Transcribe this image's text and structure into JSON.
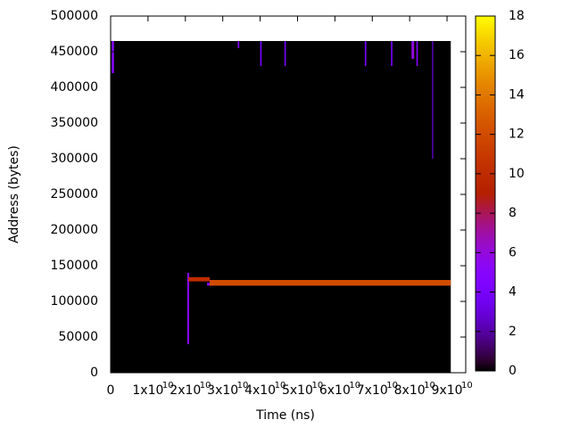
{
  "chart_data": {
    "type": "heatmap",
    "xlabel": "Time (ns)",
    "ylabel": "Address (bytes)",
    "xlim": [
      0,
      95000000000
    ],
    "ylim": [
      0,
      500000
    ],
    "xticks": [
      0,
      {
        "value": 10000000000,
        "label": "1x10",
        "exponent": "10"
      },
      {
        "value": 20000000000,
        "label": "2x10",
        "exponent": "10"
      },
      {
        "value": 30000000000,
        "label": "3x10",
        "exponent": "10"
      },
      {
        "value": 40000000000,
        "label": "4x10",
        "exponent": "10"
      },
      {
        "value": 50000000000,
        "label": "5x10",
        "exponent": "10"
      },
      {
        "value": 60000000000,
        "label": "6x10",
        "exponent": "10"
      },
      {
        "value": 70000000000,
        "label": "7x10",
        "exponent": "10"
      },
      {
        "value": 80000000000,
        "label": "8x10",
        "exponent": "10"
      },
      {
        "value": 90000000000,
        "label": "9x10",
        "exponent": "10"
      }
    ],
    "yticks": [
      0,
      50000,
      100000,
      150000,
      200000,
      250000,
      300000,
      350000,
      400000,
      450000,
      500000
    ],
    "colorbar_lim": [
      0,
      18
    ],
    "colorbar_ticks": [
      0,
      2,
      4,
      6,
      8,
      10,
      12,
      14,
      16,
      18
    ],
    "cells": [
      [
        0,
        91000000000,
        0,
        465000,
        0
      ],
      [
        20500000000,
        21000000000,
        40000,
        140000,
        5
      ],
      [
        20800000000,
        26500000000,
        128000,
        134000,
        10
      ],
      [
        25800000000,
        27500000000,
        122000,
        126000,
        5
      ],
      [
        26500000000,
        91000000000,
        122000,
        130000,
        12
      ],
      [
        300000000,
        900000000,
        420000,
        465000,
        5
      ],
      [
        34000000000,
        34400000000,
        455000,
        465000,
        5
      ],
      [
        40000000000,
        40400000000,
        430000,
        465000,
        4
      ],
      [
        46500000000,
        46900000000,
        430000,
        465000,
        4
      ],
      [
        68000000000,
        68400000000,
        430000,
        465000,
        4
      ],
      [
        75000000000,
        75400000000,
        430000,
        465000,
        4
      ],
      [
        80500000000,
        81200000000,
        440000,
        465000,
        6
      ],
      [
        81800000000,
        82200000000,
        430000,
        465000,
        5
      ],
      [
        86000000000,
        86300000000,
        300000,
        465000,
        3
      ]
    ]
  }
}
